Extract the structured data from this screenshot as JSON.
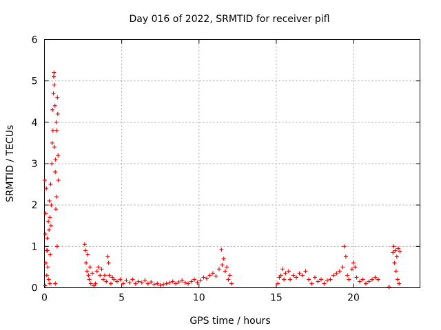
{
  "chart_data": {
    "type": "scatter",
    "title": "Day 016 of 2022, SRMTID for receiver pifl",
    "xlabel": "GPS time / hours",
    "ylabel": "SRMTID / TECUs",
    "xlim": [
      0,
      24.3
    ],
    "ylim": [
      0,
      6
    ],
    "xticks": [
      0,
      5,
      10,
      15,
      20
    ],
    "yticks": [
      0,
      1,
      2,
      3,
      4,
      5,
      6
    ],
    "grid": true,
    "marker": "plus",
    "color": "#ff0000",
    "series": [
      {
        "name": "SRMTID",
        "points": [
          [
            0.02,
            2.6
          ],
          [
            0.05,
            1.3
          ],
          [
            0.08,
            1.8
          ],
          [
            0.1,
            0.6
          ],
          [
            0.12,
            2.4
          ],
          [
            0.15,
            0.3
          ],
          [
            0.18,
            1.2
          ],
          [
            0.2,
            0.9
          ],
          [
            0.22,
            0.5
          ],
          [
            0.25,
            1.6
          ],
          [
            0.28,
            0.2
          ],
          [
            0.3,
            1.4
          ],
          [
            0.32,
            2.1
          ],
          [
            0.35,
            1.7
          ],
          [
            0.38,
            0.8
          ],
          [
            0.4,
            2.5
          ],
          [
            0.42,
            1.5
          ],
          [
            0.45,
            2.0
          ],
          [
            0.48,
            3.0
          ],
          [
            0.5,
            3.5
          ],
          [
            0.52,
            4.3
          ],
          [
            0.55,
            3.8
          ],
          [
            0.58,
            4.7
          ],
          [
            0.6,
            5.1
          ],
          [
            0.62,
            5.2
          ],
          [
            0.63,
            4.9
          ],
          [
            0.65,
            3.4
          ],
          [
            0.68,
            4.4
          ],
          [
            0.7,
            2.8
          ],
          [
            0.72,
            3.1
          ],
          [
            0.74,
            1.9
          ],
          [
            0.76,
            4.0
          ],
          [
            0.78,
            2.2
          ],
          [
            0.8,
            3.8
          ],
          [
            0.82,
            1.0
          ],
          [
            0.84,
            4.6
          ],
          [
            0.86,
            4.2
          ],
          [
            0.88,
            3.2
          ],
          [
            0.9,
            2.6
          ],
          [
            0.05,
            0.05
          ],
          [
            0.15,
            0.9
          ],
          [
            0.35,
            0.1
          ],
          [
            0.7,
            0.1
          ],
          [
            2.6,
            1.05
          ],
          [
            2.65,
            0.9
          ],
          [
            2.7,
            0.6
          ],
          [
            2.75,
            0.4
          ],
          [
            2.8,
            0.8
          ],
          [
            2.85,
            0.3
          ],
          [
            2.9,
            0.2
          ],
          [
            2.95,
            0.5
          ],
          [
            3.0,
            0.1
          ],
          [
            3.1,
            0.35
          ],
          [
            3.2,
            0.05
          ],
          [
            3.3,
            0.1
          ],
          [
            3.4,
            0.4
          ],
          [
            3.5,
            0.5
          ],
          [
            3.6,
            0.3
          ],
          [
            3.7,
            0.45
          ],
          [
            3.8,
            0.2
          ],
          [
            3.9,
            0.3
          ],
          [
            4.0,
            0.15
          ],
          [
            4.1,
            0.75
          ],
          [
            4.15,
            0.6
          ],
          [
            4.2,
            0.3
          ],
          [
            4.3,
            0.1
          ],
          [
            4.4,
            0.25
          ],
          [
            4.5,
            0.2
          ],
          [
            4.7,
            0.15
          ],
          [
            4.9,
            0.2
          ],
          [
            5.1,
            0.1
          ],
          [
            5.3,
            0.18
          ],
          [
            5.5,
            0.12
          ],
          [
            5.7,
            0.2
          ],
          [
            5.9,
            0.1
          ],
          [
            6.1,
            0.15
          ],
          [
            6.3,
            0.12
          ],
          [
            6.5,
            0.18
          ],
          [
            6.7,
            0.1
          ],
          [
            6.9,
            0.14
          ],
          [
            7.1,
            0.08
          ],
          [
            7.3,
            0.1
          ],
          [
            7.5,
            0.06
          ],
          [
            7.7,
            0.08
          ],
          [
            7.9,
            0.1
          ],
          [
            8.1,
            0.12
          ],
          [
            8.3,
            0.15
          ],
          [
            8.5,
            0.1
          ],
          [
            8.7,
            0.14
          ],
          [
            8.9,
            0.18
          ],
          [
            9.1,
            0.12
          ],
          [
            9.3,
            0.1
          ],
          [
            9.5,
            0.15
          ],
          [
            9.7,
            0.2
          ],
          [
            9.9,
            0.12
          ],
          [
            10.1,
            0.18
          ],
          [
            10.3,
            0.25
          ],
          [
            10.5,
            0.22
          ],
          [
            10.7,
            0.3
          ],
          [
            10.9,
            0.35
          ],
          [
            11.1,
            0.28
          ],
          [
            11.3,
            0.45
          ],
          [
            11.45,
            0.92
          ],
          [
            11.5,
            0.55
          ],
          [
            11.6,
            0.7
          ],
          [
            11.7,
            0.4
          ],
          [
            11.8,
            0.5
          ],
          [
            11.9,
            0.2
          ],
          [
            12.0,
            0.3
          ],
          [
            12.1,
            0.1
          ],
          [
            15.1,
            0.1
          ],
          [
            15.2,
            0.25
          ],
          [
            15.3,
            0.3
          ],
          [
            15.4,
            0.45
          ],
          [
            15.5,
            0.2
          ],
          [
            15.6,
            0.35
          ],
          [
            15.8,
            0.4
          ],
          [
            15.9,
            0.2
          ],
          [
            16.1,
            0.3
          ],
          [
            16.3,
            0.25
          ],
          [
            16.5,
            0.35
          ],
          [
            16.7,
            0.3
          ],
          [
            16.9,
            0.4
          ],
          [
            17.1,
            0.2
          ],
          [
            17.3,
            0.1
          ],
          [
            17.5,
            0.25
          ],
          [
            17.7,
            0.15
          ],
          [
            17.9,
            0.2
          ],
          [
            18.1,
            0.1
          ],
          [
            18.3,
            0.18
          ],
          [
            18.5,
            0.2
          ],
          [
            18.7,
            0.3
          ],
          [
            18.9,
            0.35
          ],
          [
            19.1,
            0.4
          ],
          [
            19.3,
            0.5
          ],
          [
            19.4,
            1.0
          ],
          [
            19.5,
            0.75
          ],
          [
            19.6,
            0.3
          ],
          [
            19.7,
            0.2
          ],
          [
            19.9,
            0.45
          ],
          [
            20.0,
            0.6
          ],
          [
            20.1,
            0.5
          ],
          [
            20.2,
            0.25
          ],
          [
            20.4,
            0.15
          ],
          [
            20.6,
            0.2
          ],
          [
            20.8,
            0.1
          ],
          [
            21.0,
            0.15
          ],
          [
            21.2,
            0.2
          ],
          [
            21.4,
            0.25
          ],
          [
            21.6,
            0.2
          ],
          [
            22.3,
            0.02
          ],
          [
            22.55,
            0.85
          ],
          [
            22.6,
            1.0
          ],
          [
            22.65,
            0.6
          ],
          [
            22.7,
            0.9
          ],
          [
            22.75,
            0.4
          ],
          [
            22.8,
            0.75
          ],
          [
            22.85,
            0.2
          ],
          [
            22.9,
            0.95
          ],
          [
            22.95,
            0.1
          ],
          [
            23.0,
            0.88
          ]
        ]
      }
    ]
  }
}
